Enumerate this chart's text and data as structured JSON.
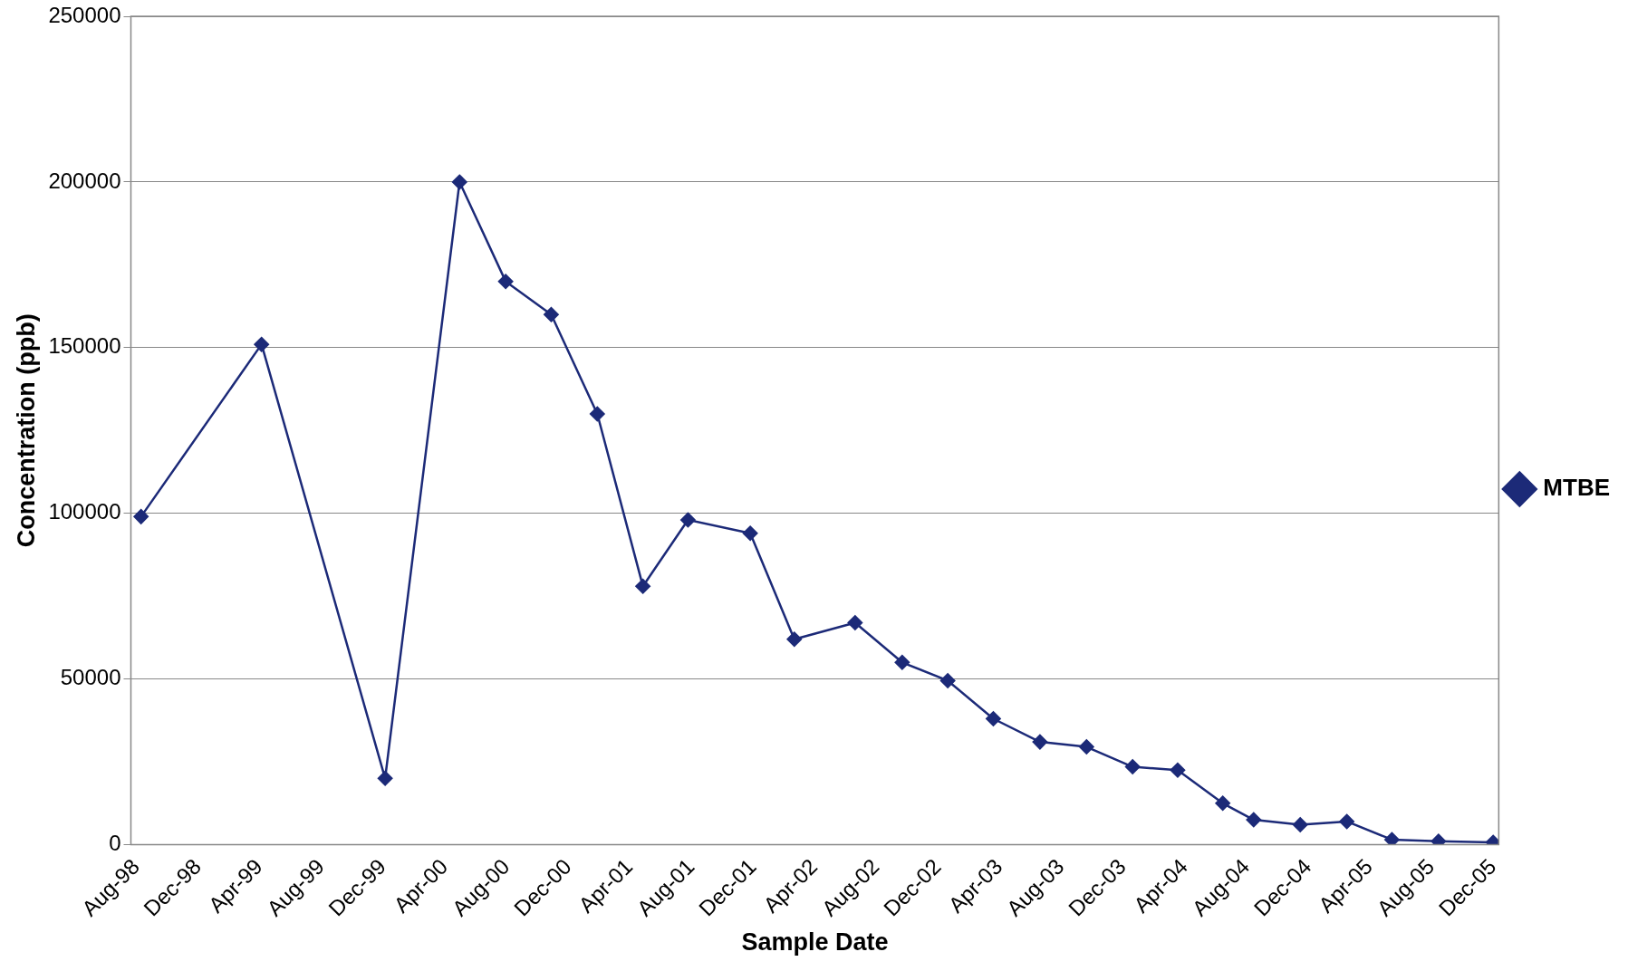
{
  "chart_data": {
    "type": "line",
    "xlabel": "Sample Date",
    "ylabel": "Concentration (ppb)",
    "x": [
      "1998-08-10",
      "1999-04-05",
      "1999-12-05",
      "2000-04-30",
      "2000-07-30",
      "2000-10-28",
      "2001-01-27",
      "2001-04-27",
      "2001-07-25",
      "2001-11-25",
      "2002-02-20",
      "2002-06-20",
      "2002-09-21",
      "2002-12-20",
      "2003-03-20",
      "2003-06-20",
      "2003-09-20",
      "2003-12-20",
      "2004-03-18",
      "2004-06-15",
      "2004-08-15",
      "2004-11-15",
      "2005-02-15",
      "2005-05-15",
      "2005-08-15",
      "2005-12-01"
    ],
    "series": [
      {
        "name": "MTBE",
        "color": "#1c2a78",
        "values": [
          99000,
          151000,
          20000,
          200000,
          170000,
          160000,
          130000,
          78000,
          98000,
          94000,
          62000,
          67000,
          55000,
          49500,
          38000,
          31000,
          29500,
          23500,
          22500,
          12500,
          7500,
          6000,
          7000,
          1500,
          1000,
          700
        ]
      }
    ],
    "xlim": [
      "1998-07-21",
      "2005-12-12"
    ],
    "xticks": [
      {
        "value": "1998-08-01",
        "label": "Aug-98"
      },
      {
        "value": "1998-12-01",
        "label": "Dec-98"
      },
      {
        "value": "1999-04-01",
        "label": "Apr-99"
      },
      {
        "value": "1999-08-01",
        "label": "Aug-99"
      },
      {
        "value": "1999-12-01",
        "label": "Dec-99"
      },
      {
        "value": "2000-04-01",
        "label": "Apr-00"
      },
      {
        "value": "2000-08-01",
        "label": "Aug-00"
      },
      {
        "value": "2000-12-01",
        "label": "Dec-00"
      },
      {
        "value": "2001-04-01",
        "label": "Apr-01"
      },
      {
        "value": "2001-08-01",
        "label": "Aug-01"
      },
      {
        "value": "2001-12-01",
        "label": "Dec-01"
      },
      {
        "value": "2002-04-01",
        "label": "Apr-02"
      },
      {
        "value": "2002-08-01",
        "label": "Aug-02"
      },
      {
        "value": "2002-12-01",
        "label": "Dec-02"
      },
      {
        "value": "2003-04-01",
        "label": "Apr-03"
      },
      {
        "value": "2003-08-01",
        "label": "Aug-03"
      },
      {
        "value": "2003-12-01",
        "label": "Dec-03"
      },
      {
        "value": "2004-04-01",
        "label": "Apr-04"
      },
      {
        "value": "2004-08-01",
        "label": "Aug-04"
      },
      {
        "value": "2004-12-01",
        "label": "Dec-04"
      },
      {
        "value": "2005-04-01",
        "label": "Apr-05"
      },
      {
        "value": "2005-08-01",
        "label": "Aug-05"
      },
      {
        "value": "2005-12-01",
        "label": "Dec-05"
      }
    ],
    "ylim": [
      0,
      250000
    ],
    "yticks": [
      0,
      50000,
      100000,
      150000,
      200000,
      250000
    ],
    "grid": "y",
    "legend": "right",
    "marker": "diamond"
  }
}
